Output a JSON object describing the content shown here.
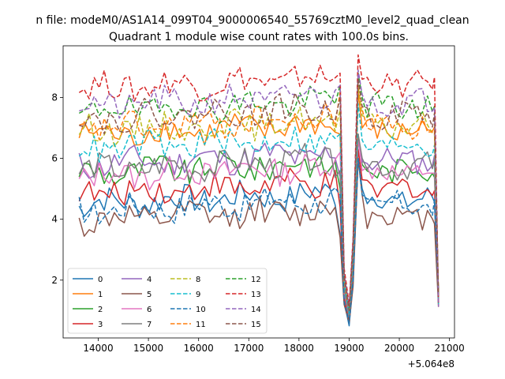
{
  "chart_data": {
    "type": "line",
    "suptitle": "n file: modeM0/AS1A14_099T04_9000006540_55769cztM0_level2_quad_clean",
    "title": "Quadrant 1 module wise count rates with 100.0s bins.",
    "xlabel": "",
    "ylabel": "",
    "x_offset_label": "+5.064e8",
    "xlim": [
      13300,
      21100
    ],
    "ylim": [
      0.1,
      9.7
    ],
    "x_ticks": [
      14000,
      15000,
      16000,
      17000,
      18000,
      19000,
      20000,
      21000
    ],
    "x_tick_labels": [
      "14000",
      "15000",
      "16000",
      "17000",
      "18000",
      "19000",
      "20000",
      "21000"
    ],
    "y_ticks": [
      2,
      4,
      6,
      8
    ],
    "y_tick_labels": [
      "2",
      "4",
      "6",
      "8"
    ],
    "grid": false,
    "legend_position": "lower-left",
    "legend_columns": 4,
    "x_range": [
      13620,
      20800
    ],
    "bin_seconds": 100,
    "dip_x": [
      18820,
      18900,
      19000,
      19080,
      19180,
      19260
    ],
    "series": [
      {
        "name": "0",
        "color": "#1f77b4",
        "dash": "solid",
        "base": 4.5,
        "dip": [
          3.5,
          1.3,
          0.5,
          2.0,
          6.0,
          5.0
        ]
      },
      {
        "name": "1",
        "color": "#ff7f0e",
        "dash": "solid",
        "base": 6.75,
        "dip": [
          6.8,
          1.8,
          0.9,
          2.8,
          8.2,
          7.0
        ]
      },
      {
        "name": "2",
        "color": "#2ca02c",
        "dash": "solid",
        "base": 5.5,
        "dip": [
          5.0,
          1.6,
          0.7,
          2.4,
          6.8,
          5.8
        ]
      },
      {
        "name": "3",
        "color": "#d62728",
        "dash": "solid",
        "base": 4.85,
        "dip": [
          4.4,
          1.4,
          0.6,
          2.2,
          6.3,
          5.3
        ]
      },
      {
        "name": "4",
        "color": "#9467bd",
        "dash": "solid",
        "base": 5.8,
        "dip": [
          5.4,
          1.6,
          0.8,
          2.4,
          6.6,
          5.9
        ]
      },
      {
        "name": "5",
        "color": "#8c564b",
        "dash": "solid",
        "base": 3.95,
        "dip": [
          3.4,
          1.2,
          0.6,
          1.8,
          6.0,
          4.8
        ]
      },
      {
        "name": "6",
        "color": "#e377c2",
        "dash": "solid",
        "base": 5.4,
        "dip": [
          6.2,
          1.6,
          0.8,
          2.5,
          6.7,
          5.6
        ]
      },
      {
        "name": "7",
        "color": "#7f7f7f",
        "dash": "solid",
        "base": 5.6,
        "dip": [
          5.6,
          1.7,
          0.8,
          2.5,
          6.8,
          6.0
        ]
      },
      {
        "name": "8",
        "color": "#bcbd22",
        "dash": "dashed",
        "base": 6.9,
        "dip": [
          7.6,
          2.0,
          1.0,
          3.0,
          8.4,
          7.4
        ]
      },
      {
        "name": "9",
        "color": "#17becf",
        "dash": "dashed",
        "base": 6.3,
        "dip": [
          6.8,
          1.9,
          0.9,
          2.8,
          7.8,
          6.6
        ]
      },
      {
        "name": "10",
        "color": "#1f77b4",
        "dash": "dashed",
        "base": 4.3,
        "dip": [
          4.8,
          1.3,
          0.6,
          2.0,
          6.0,
          4.8
        ]
      },
      {
        "name": "11",
        "color": "#ff7f0e",
        "dash": "dashed",
        "base": 6.95,
        "dip": [
          8.2,
          2.0,
          1.0,
          3.0,
          8.6,
          7.6
        ]
      },
      {
        "name": "12",
        "color": "#2ca02c",
        "dash": "dashed",
        "base": 7.55,
        "dip": [
          8.4,
          2.2,
          1.1,
          3.2,
          8.8,
          8.0
        ]
      },
      {
        "name": "13",
        "color": "#d62728",
        "dash": "dashed",
        "base": 8.3,
        "dip": [
          8.8,
          2.4,
          1.2,
          3.4,
          9.4,
          8.6
        ]
      },
      {
        "name": "14",
        "color": "#9467bd",
        "dash": "dashed",
        "base": 7.7,
        "dip": [
          8.4,
          2.2,
          1.1,
          3.3,
          8.9,
          8.1
        ]
      },
      {
        "name": "15",
        "color": "#8c564b",
        "dash": "dashed",
        "base": 7.3,
        "dip": [
          8.0,
          2.1,
          1.0,
          3.1,
          8.6,
          7.7
        ]
      }
    ]
  }
}
